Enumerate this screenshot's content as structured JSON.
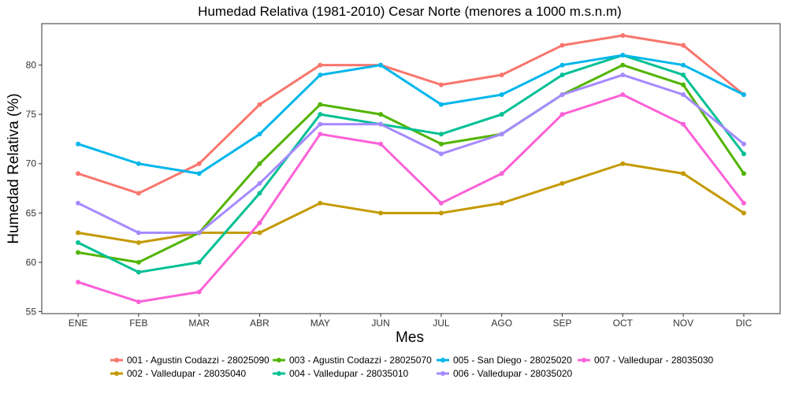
{
  "chart_data": {
    "type": "line",
    "title": "Humedad Relativa (1981-2010) Cesar Norte (menores a 1000 m.s.n.m)",
    "xlabel": "Mes",
    "ylabel": "Humedad Relativa (%)",
    "categories": [
      "ENE",
      "FEB",
      "MAR",
      "ABR",
      "MAY",
      "JUN",
      "JUL",
      "AGO",
      "SEP",
      "OCT",
      "NOV",
      "DIC"
    ],
    "ylim": [
      54.8,
      84.2
    ],
    "yticks": [
      55,
      60,
      65,
      70,
      75,
      80
    ],
    "grid": false,
    "legend_position": "bottom",
    "series": [
      {
        "name": "001 - Agustin Codazzi - 28025090",
        "color": "#F8766D",
        "values": [
          69,
          67,
          70,
          76,
          80,
          80,
          78,
          79,
          82,
          83,
          82,
          77
        ]
      },
      {
        "name": "002 - Valledupar - 28035040",
        "color": "#C49A00",
        "values": [
          63,
          62,
          63,
          63,
          66,
          65,
          65,
          66,
          68,
          70,
          69,
          65
        ]
      },
      {
        "name": "003 - Agustin Codazzi - 28025070",
        "color": "#53B400",
        "values": [
          61,
          60,
          63,
          70,
          76,
          75,
          72,
          73,
          77,
          80,
          78,
          69
        ]
      },
      {
        "name": "004 - Valledupar - 28035010",
        "color": "#00C094",
        "values": [
          62,
          59,
          60,
          67,
          75,
          74,
          73,
          75,
          79,
          81,
          79,
          71
        ]
      },
      {
        "name": "005 - San Diego - 28025020",
        "color": "#00B6EB",
        "values": [
          72,
          70,
          69,
          73,
          79,
          80,
          76,
          77,
          80,
          81,
          80,
          77
        ]
      },
      {
        "name": "006 - Valledupar - 28035020",
        "color": "#A58AFF",
        "values": [
          66,
          63,
          63,
          68,
          74,
          74,
          71,
          73,
          77,
          79,
          77,
          72
        ]
      },
      {
        "name": "007 - Valledupar - 28035030",
        "color": "#FB61D7",
        "values": [
          58,
          56,
          57,
          64,
          73,
          72,
          66,
          69,
          75,
          77,
          74,
          66
        ]
      }
    ]
  }
}
